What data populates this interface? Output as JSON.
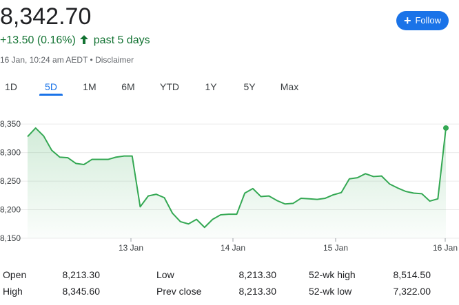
{
  "quote": {
    "price": "8,342.70",
    "change": "+13.50 (0.16%)",
    "period": "past 5 days",
    "timestamp": "16 Jan, 10:24 am AEDT",
    "separator": " • ",
    "disclaimer": "Disclaimer"
  },
  "follow_button": {
    "label": "Follow",
    "color": "#1a73e8"
  },
  "tabs": [
    {
      "label": "1D"
    },
    {
      "label": "5D",
      "active": true
    },
    {
      "label": "1M"
    },
    {
      "label": "6M"
    },
    {
      "label": "YTD"
    },
    {
      "label": "1Y"
    },
    {
      "label": "5Y"
    },
    {
      "label": "Max"
    }
  ],
  "chart_data": {
    "type": "area",
    "color": "#34a853",
    "y_ticks": [
      "8,350",
      "8,300",
      "8,250",
      "8,200",
      "8,150"
    ],
    "x_ticks": [
      "13 Jan",
      "14 Jan",
      "15 Jan",
      "16 Jan"
    ],
    "ylim": [
      8150,
      8355
    ],
    "series": [
      {
        "values": [
          8328,
          8343,
          8329,
          8304,
          8292,
          8291,
          8281,
          8279,
          8288,
          8288,
          8288,
          8292,
          8294,
          8294,
          8205,
          8224,
          8227,
          8221,
          8194,
          8179,
          8175,
          8183,
          8169,
          8183,
          8191,
          8192,
          8192,
          8229,
          8237,
          8223,
          8224,
          8216,
          8210,
          8211,
          8220,
          8219,
          8218,
          8220,
          8226,
          8230,
          8254,
          8256,
          8263,
          8258,
          8259,
          8245,
          8238,
          8232,
          8229,
          8228,
          8215,
          8219,
          8343
        ]
      }
    ]
  },
  "stats": {
    "open_label": "Open",
    "open_value": "8,213.30",
    "high_label": "High",
    "high_value": "8,345.60",
    "low_label": "Low",
    "low_value": "8,213.30",
    "prev_close_label": "Prev close",
    "prev_close_value": "8,213.30",
    "wk52_high_label": "52-wk high",
    "wk52_high_value": "8,514.50",
    "wk52_low_label": "52-wk low",
    "wk52_low_value": "7,322.00"
  }
}
